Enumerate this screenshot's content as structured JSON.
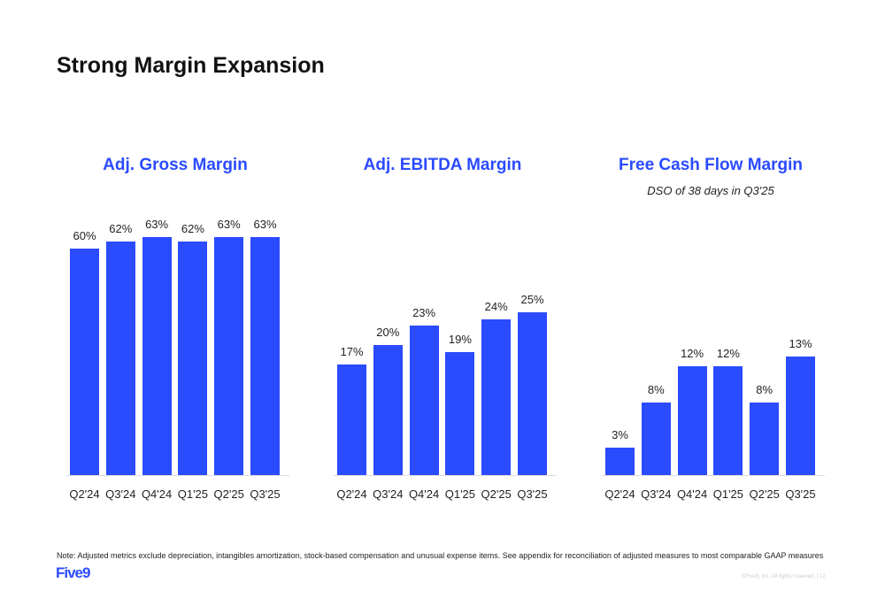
{
  "title": "Strong Margin Expansion",
  "note": "Note: Adjusted metrics exclude depreciation, intangibles amortization, stock-based compensation and unusual expense items. See appendix for reconciliation of adjusted measures to most comparable GAAP measures",
  "logo": "Five9",
  "copyright": "©Five9, Inc. All rights reserved. | 12",
  "bar_color": "#2b4bff",
  "chart_data": [
    {
      "type": "bar",
      "title": "Adj. Gross Margin",
      "subtitle": "",
      "categories": [
        "Q2'24",
        "Q3'24",
        "Q4'24",
        "Q1'25",
        "Q2'25",
        "Q3'25"
      ],
      "values": [
        60,
        62,
        63,
        62,
        63,
        63
      ],
      "labels": [
        "60%",
        "62%",
        "63%",
        "62%",
        "63%",
        "63%"
      ],
      "ylim": [
        0,
        68
      ]
    },
    {
      "type": "bar",
      "title": "Adj. EBITDA Margin",
      "subtitle": "",
      "categories": [
        "Q2'24",
        "Q3'24",
        "Q4'24",
        "Q1'25",
        "Q2'25",
        "Q3'25"
      ],
      "values": [
        17,
        20,
        23,
        19,
        24,
        25
      ],
      "labels": [
        "17%",
        "20%",
        "23%",
        "19%",
        "24%",
        "25%"
      ],
      "ylim": [
        0,
        39.5
      ]
    },
    {
      "type": "bar",
      "title": "Free Cash Flow Margin",
      "subtitle": "DSO of 38 days in Q3'25",
      "categories": [
        "Q2'24",
        "Q3'24",
        "Q4'24",
        "Q1'25",
        "Q2'25",
        "Q3'25"
      ],
      "values": [
        3,
        8,
        12,
        12,
        8,
        13
      ],
      "labels": [
        "3%",
        "8%",
        "12%",
        "12%",
        "8%",
        "13%"
      ],
      "ylim": [
        0,
        28.2
      ]
    }
  ]
}
